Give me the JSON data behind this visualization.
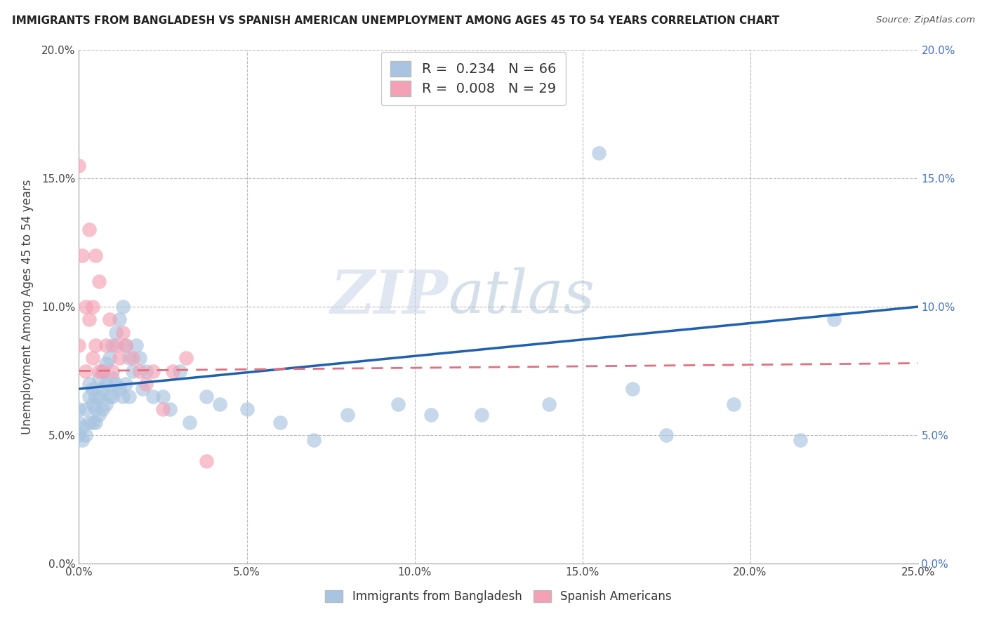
{
  "title": "IMMIGRANTS FROM BANGLADESH VS SPANISH AMERICAN UNEMPLOYMENT AMONG AGES 45 TO 54 YEARS CORRELATION CHART",
  "source": "Source: ZipAtlas.com",
  "ylabel": "Unemployment Among Ages 45 to 54 years",
  "xlim": [
    0.0,
    0.25
  ],
  "ylim": [
    0.0,
    0.2
  ],
  "watermark_zip": "ZIP",
  "watermark_atlas": "atlas",
  "legend1_label": "R =  0.234   N = 66",
  "legend2_label": "R =  0.008   N = 29",
  "legend_bottom1": "Immigrants from Bangladesh",
  "legend_bottom2": "Spanish Americans",
  "blue_color": "#a8c4e0",
  "pink_color": "#f4a0b5",
  "blue_line_color": "#2060b0",
  "pink_line_color": "#e07080",
  "grid_color": "#bbbbbb",
  "blue_scatter_x": [
    0.0,
    0.0,
    0.0,
    0.001,
    0.001,
    0.002,
    0.002,
    0.003,
    0.003,
    0.003,
    0.004,
    0.004,
    0.004,
    0.005,
    0.005,
    0.005,
    0.006,
    0.006,
    0.006,
    0.007,
    0.007,
    0.007,
    0.008,
    0.008,
    0.008,
    0.009,
    0.009,
    0.01,
    0.01,
    0.01,
    0.011,
    0.011,
    0.012,
    0.012,
    0.013,
    0.013,
    0.014,
    0.014,
    0.015,
    0.015,
    0.016,
    0.017,
    0.018,
    0.019,
    0.02,
    0.022,
    0.025,
    0.027,
    0.03,
    0.033,
    0.038,
    0.042,
    0.05,
    0.06,
    0.07,
    0.08,
    0.095,
    0.105,
    0.12,
    0.14,
    0.155,
    0.165,
    0.175,
    0.195,
    0.215,
    0.225
  ],
  "blue_scatter_y": [
    0.05,
    0.055,
    0.06,
    0.048,
    0.053,
    0.05,
    0.06,
    0.055,
    0.065,
    0.07,
    0.055,
    0.062,
    0.068,
    0.055,
    0.06,
    0.065,
    0.058,
    0.065,
    0.072,
    0.06,
    0.068,
    0.075,
    0.062,
    0.07,
    0.078,
    0.065,
    0.08,
    0.065,
    0.072,
    0.085,
    0.07,
    0.09,
    0.068,
    0.095,
    0.065,
    0.1,
    0.07,
    0.085,
    0.065,
    0.08,
    0.075,
    0.085,
    0.08,
    0.068,
    0.075,
    0.065,
    0.065,
    0.06,
    0.075,
    0.055,
    0.065,
    0.062,
    0.06,
    0.055,
    0.048,
    0.058,
    0.062,
    0.058,
    0.058,
    0.062,
    0.16,
    0.068,
    0.05,
    0.062,
    0.048,
    0.095
  ],
  "pink_scatter_x": [
    0.0,
    0.0,
    0.001,
    0.002,
    0.002,
    0.003,
    0.003,
    0.004,
    0.004,
    0.005,
    0.005,
    0.006,
    0.006,
    0.007,
    0.008,
    0.009,
    0.01,
    0.011,
    0.012,
    0.013,
    0.014,
    0.016,
    0.018,
    0.02,
    0.022,
    0.025,
    0.028,
    0.032,
    0.038
  ],
  "pink_scatter_y": [
    0.155,
    0.085,
    0.12,
    0.1,
    0.075,
    0.13,
    0.095,
    0.1,
    0.08,
    0.12,
    0.085,
    0.075,
    0.11,
    0.075,
    0.085,
    0.095,
    0.075,
    0.085,
    0.08,
    0.09,
    0.085,
    0.08,
    0.075,
    0.07,
    0.075,
    0.06,
    0.075,
    0.08,
    0.04
  ],
  "blue_line_x0": 0.0,
  "blue_line_y0": 0.068,
  "blue_line_x1": 0.25,
  "blue_line_y1": 0.1,
  "pink_line_x0": 0.0,
  "pink_line_y0": 0.075,
  "pink_line_x1": 0.25,
  "pink_line_y1": 0.078
}
